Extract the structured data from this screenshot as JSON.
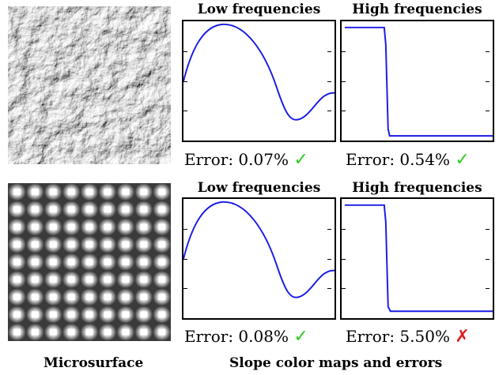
{
  "rows": [
    {
      "microsurface": "rough-rock-texture",
      "panels": [
        {
          "title": "Low frequencies",
          "error": "Error: 0.07%",
          "status": "check",
          "status_glyph": "✓",
          "status_color": "#2ecc1f"
        },
        {
          "title": "High frequencies",
          "error": "Error: 0.54%",
          "status": "check",
          "status_glyph": "✓",
          "status_color": "#2ecc1f"
        }
      ]
    },
    {
      "microsurface": "periodic-bump-grid",
      "panels": [
        {
          "title": "Low frequencies",
          "error": "Error: 0.08%",
          "status": "check",
          "status_glyph": "✓",
          "status_color": "#2ecc1f"
        },
        {
          "title": "High frequencies",
          "error": "Error: 5.50%",
          "status": "cross",
          "status_glyph": "✗",
          "status_color": "#e31b1b"
        }
      ]
    }
  ],
  "captions": {
    "left": "Microsurface",
    "right": "Slope color maps and errors"
  },
  "colors": {
    "curve": "#1a1ae6"
  }
}
